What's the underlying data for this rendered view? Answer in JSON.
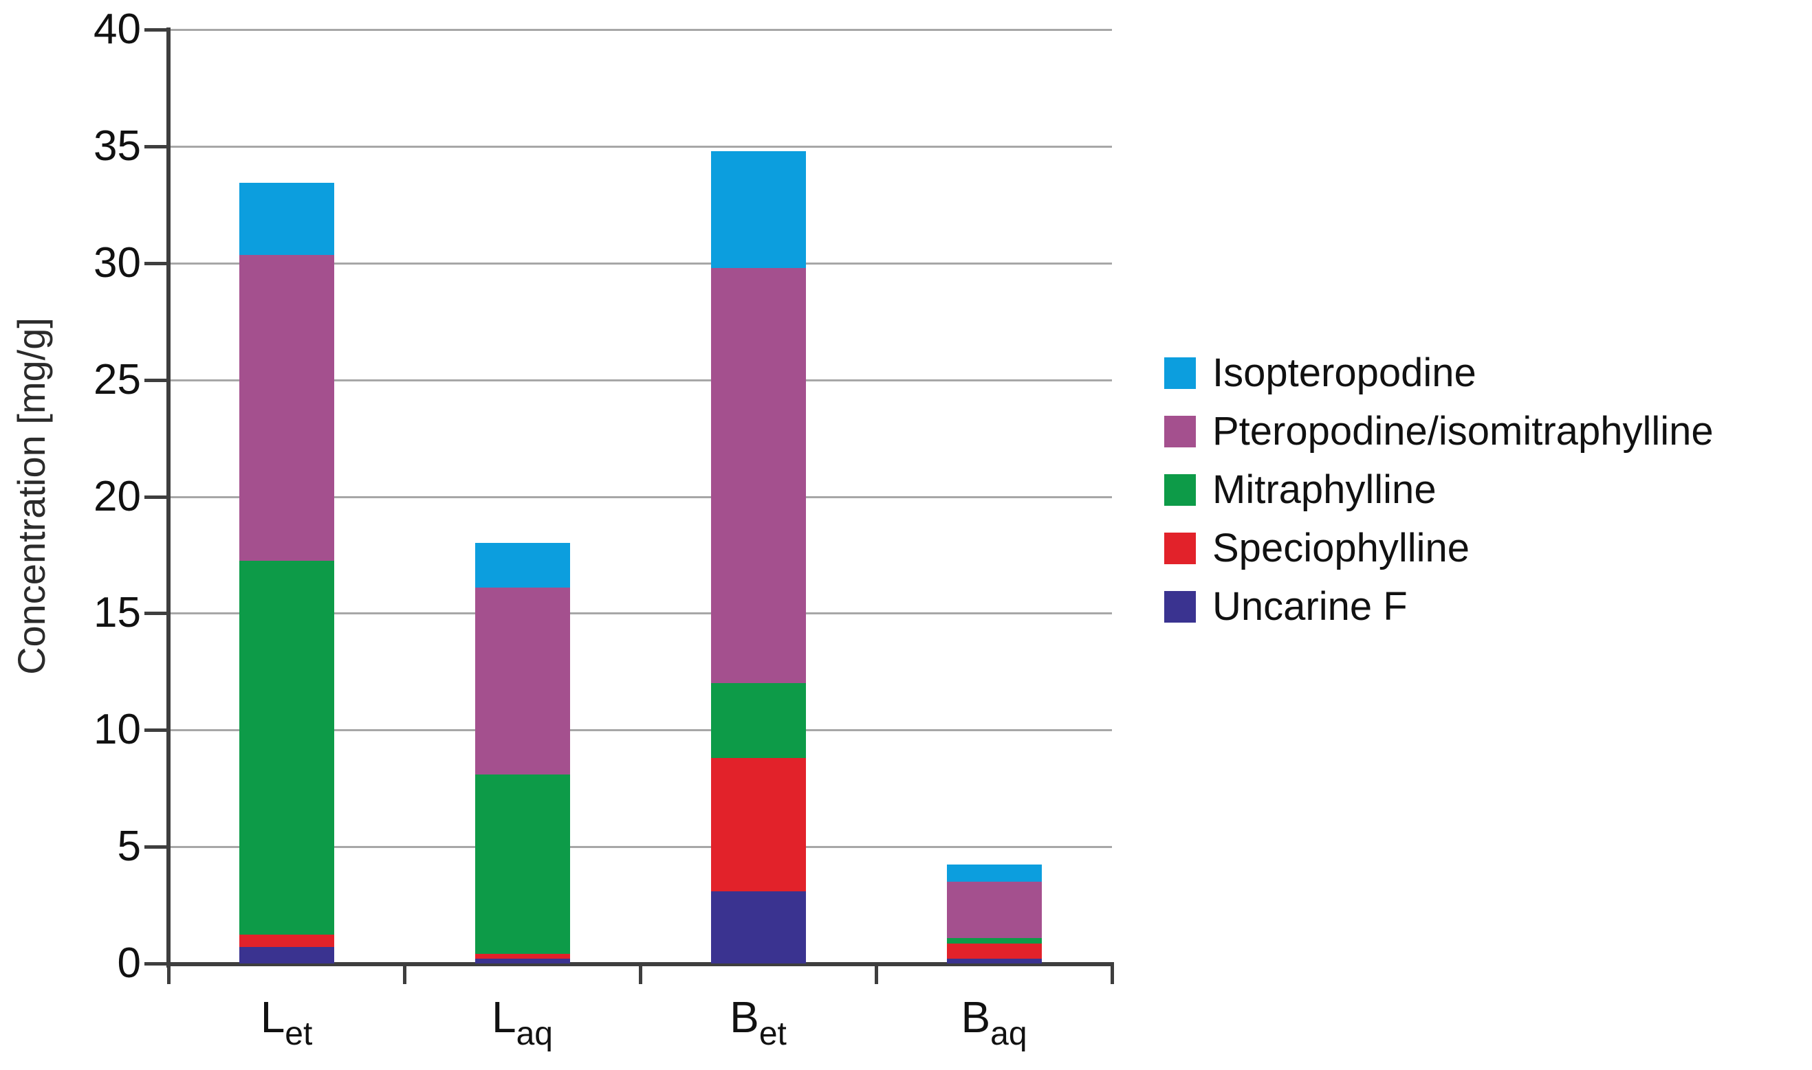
{
  "figure": {
    "background": "#ffffff"
  },
  "y_axis": {
    "title": "Concentration [mg/g]",
    "min": 0,
    "max": 40,
    "tick_step": 5,
    "tick_labels": [
      "0",
      "5",
      "10",
      "15",
      "20",
      "25",
      "30",
      "35",
      "40"
    ]
  },
  "x_axis": {
    "categories": [
      {
        "base": "L",
        "sub": "et"
      },
      {
        "base": "L",
        "sub": "aq"
      },
      {
        "base": "B",
        "sub": "et"
      },
      {
        "base": "B",
        "sub": "aq"
      }
    ]
  },
  "colors": {
    "axis": "#3e3e3e",
    "gridline": "#a7a7a7",
    "text": "#111111"
  },
  "chart_data": {
    "type": "bar",
    "stacked": true,
    "title": "",
    "xlabel": "",
    "ylabel": "Concentration [mg/g]",
    "ylim": [
      0,
      40
    ],
    "grid": true,
    "legend_position": "right",
    "categories": [
      "L_et",
      "L_aq",
      "B_et",
      "B_aq"
    ],
    "series": [
      {
        "name": "Isopteropodine",
        "color": "#0c9ede",
        "values": [
          3.1,
          1.9,
          5.0,
          0.75
        ]
      },
      {
        "name": "Pteropodine/isomitraphylline",
        "color": "#a4508e",
        "values": [
          13.1,
          8.0,
          17.8,
          2.4
        ]
      },
      {
        "name": "Mitraphylline",
        "color": "#0d9b48",
        "values": [
          16.0,
          7.7,
          3.2,
          0.25
        ]
      },
      {
        "name": "Speciophylline",
        "color": "#e2222a",
        "values": [
          0.55,
          0.2,
          5.7,
          0.65
        ]
      },
      {
        "name": "Uncarine F",
        "color": "#3a3390",
        "values": [
          0.7,
          0.2,
          3.1,
          0.2
        ]
      }
    ],
    "totals": [
      33.45,
      18.0,
      34.8,
      4.25
    ],
    "stack_order_note": "series listed top-to-bottom as in legend; stacking is bottom-up in reverse order"
  }
}
